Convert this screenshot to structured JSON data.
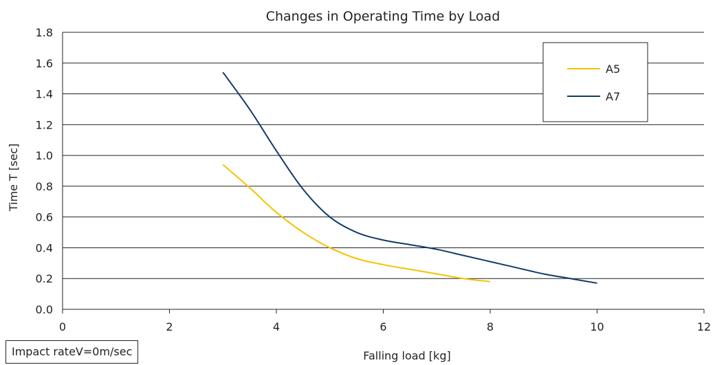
{
  "chart_data": {
    "type": "line",
    "title": "Changes in Operating Time by Load",
    "xlabel": "Falling load [kg]",
    "ylabel": "Time T [sec]",
    "xlim": [
      0,
      12
    ],
    "ylim": [
      0.0,
      1.8
    ],
    "xticks": [
      "0",
      "2",
      "4",
      "6",
      "8",
      "10",
      "12"
    ],
    "yticks": [
      "0.0",
      "0.2",
      "0.4",
      "0.6",
      "0.8",
      "1.0",
      "1.2",
      "1.4",
      "1.6",
      "1.8"
    ],
    "grid": "horizontal",
    "legend_position": "top-right",
    "series": [
      {
        "name": "A5",
        "color": "#F5C200",
        "x": [
          3,
          3.5,
          4,
          4.5,
          5,
          5.5,
          6,
          6.5,
          7,
          7.5,
          8
        ],
        "y": [
          0.94,
          0.79,
          0.63,
          0.5,
          0.4,
          0.33,
          0.29,
          0.26,
          0.23,
          0.2,
          0.18
        ]
      },
      {
        "name": "A7",
        "color": "#0F3A6B",
        "x": [
          3,
          3.5,
          4,
          4.5,
          5,
          5.5,
          6,
          6.5,
          7,
          7.5,
          8,
          8.5,
          9,
          9.5,
          10
        ],
        "y": [
          1.54,
          1.3,
          1.03,
          0.78,
          0.6,
          0.5,
          0.45,
          0.42,
          0.39,
          0.35,
          0.31,
          0.27,
          0.23,
          0.2,
          0.17
        ]
      }
    ],
    "annotation": "Impact rateV=0m/sec"
  }
}
